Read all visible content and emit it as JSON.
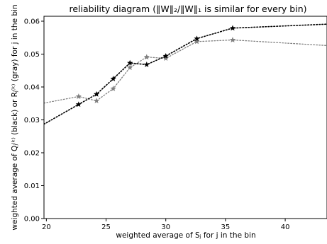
{
  "chart_data": {
    "type": "line",
    "title": "reliability diagram (‖W‖₂/‖W‖₁ is similar for every bin)",
    "xlabel": "weighted average of Sⱼ for j in the bin",
    "ylabel": "weighted average of Qⱼ⁽ᵏ⁾ (black) or Rⱼ⁽ᵏ⁾ (gray) for j in the bin",
    "xlim": [
      19.8,
      43.5
    ],
    "ylim": [
      0.0,
      0.0615
    ],
    "x_ticks": [
      20,
      25,
      30,
      35,
      40
    ],
    "y_ticks": [
      0.0,
      0.01,
      0.02,
      0.03,
      0.04,
      0.05,
      0.06
    ],
    "x_tick_labels": [
      "20",
      "25",
      "30",
      "35",
      "40"
    ],
    "y_tick_labels": [
      "0.00",
      "0.01",
      "0.02",
      "0.03",
      "0.04",
      "0.05",
      "0.06"
    ],
    "grid": false,
    "line_style": "dotted",
    "marker": "star",
    "series": [
      {
        "color": "#000000",
        "x": [
          19.8,
          22.7,
          24.2,
          25.6,
          27.0,
          28.4,
          30.0,
          32.6,
          35.6,
          43.5
        ],
        "y": [
          0.0287,
          0.0347,
          0.0378,
          0.0425,
          0.0473,
          0.0468,
          0.0494,
          0.0547,
          0.0579,
          0.0591
        ],
        "markers": [
          false,
          true,
          true,
          true,
          true,
          true,
          true,
          true,
          true,
          false
        ]
      },
      {
        "color": "#7f7f7f",
        "x": [
          19.8,
          22.7,
          24.2,
          25.6,
          27.0,
          28.4,
          30.0,
          32.6,
          35.6,
          43.5
        ],
        "y": [
          0.0351,
          0.0371,
          0.0358,
          0.0395,
          0.0459,
          0.0491,
          0.0487,
          0.0538,
          0.0543,
          0.0526
        ],
        "markers": [
          false,
          true,
          true,
          true,
          true,
          true,
          true,
          true,
          true,
          false
        ]
      }
    ]
  }
}
